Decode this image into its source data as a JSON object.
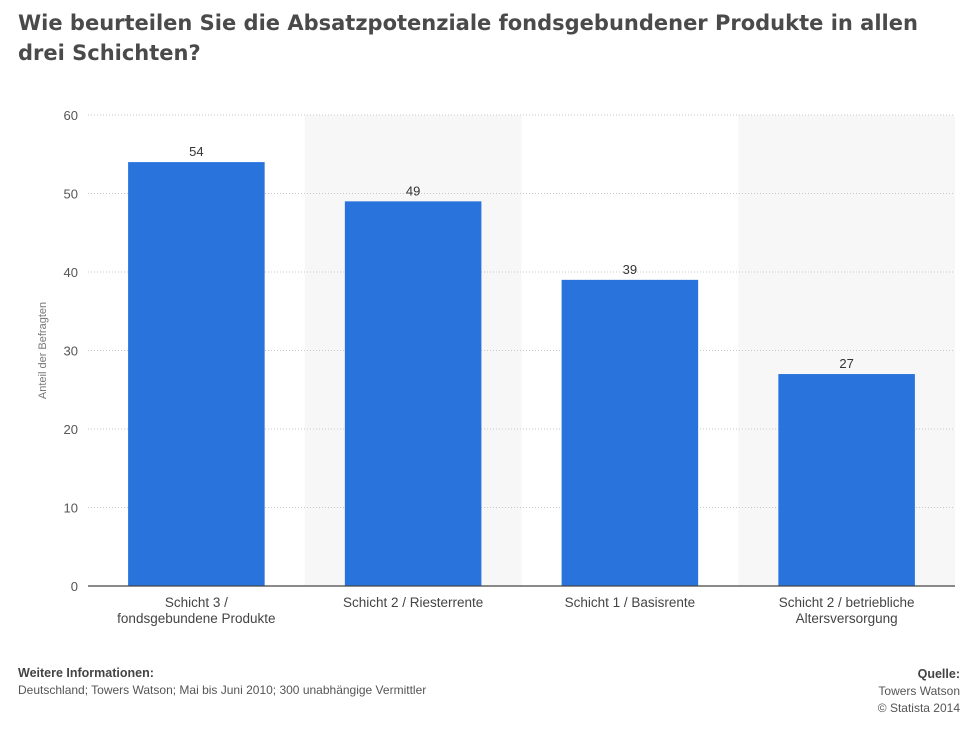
{
  "chart_data": {
    "type": "bar",
    "title": "Wie beurteilen Sie die Absatzpotenziale fondsgebundener Produkte in allen drei Schichten?",
    "categories": [
      [
        "Schicht 3 /",
        "fondsgebundene Produkte"
      ],
      [
        "Schicht 2 / Riesterrente"
      ],
      [
        "Schicht 1 / Basisrente"
      ],
      [
        "Schicht 2 / betriebliche",
        "Altersversorgung"
      ]
    ],
    "values": [
      54,
      49,
      39,
      27
    ],
    "value_labels": [
      "54",
      "49",
      "39",
      "27"
    ],
    "xlabel": "",
    "ylabel": "Anteil der Befragten",
    "ylim": [
      0,
      60
    ],
    "yticks": [
      0,
      10,
      20,
      30,
      40,
      50,
      60
    ],
    "grid": true,
    "bar_color": "#2874dc",
    "band_color": "#f7f7f7"
  },
  "footer": {
    "info_heading": "Weitere Informationen:",
    "info_text": "Deutschland; Towers Watson; Mai bis Juni 2010; 300 unabhängige Vermittler",
    "source_heading": "Quelle:",
    "source_name": "Towers Watson",
    "copyright": "© Statista 2014"
  }
}
